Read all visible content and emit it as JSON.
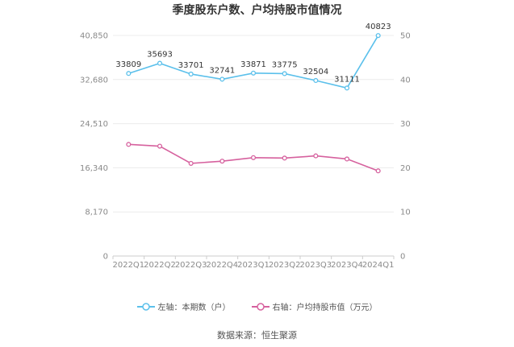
{
  "chart_data": {
    "type": "line",
    "title": "季度股东户数、户均持股市值情况",
    "categories": [
      "2022Q1",
      "2022Q2",
      "2022Q3",
      "2022Q4",
      "2023Q1",
      "2023Q2",
      "2023Q3",
      "2023Q4",
      "2024Q1"
    ],
    "series": [
      {
        "name": "左轴：本期数（户）",
        "axis": "left",
        "color": "#5bc0eb",
        "values": [
          33809,
          35693,
          33701,
          32741,
          33871,
          33775,
          32504,
          31111,
          40823
        ],
        "data_labels": [
          "33809",
          "35693",
          "33701",
          "32741",
          "33871",
          "33775",
          "32504",
          "31111",
          "40823"
        ]
      },
      {
        "name": "右轴：户均持股市值（万元）",
        "axis": "right",
        "color": "#d6619e",
        "values": [
          25.3,
          24.9,
          21.0,
          21.5,
          22.3,
          22.2,
          22.7,
          22.0,
          19.3
        ]
      }
    ],
    "y_left": {
      "ylim": [
        0,
        40850
      ],
      "ticks": [
        0,
        8170,
        16340,
        24510,
        32680,
        40850
      ],
      "tick_labels": [
        "0",
        "8,170",
        "16,340",
        "24,510",
        "32,680",
        "40,850"
      ]
    },
    "y_right": {
      "ylim": [
        0,
        50
      ],
      "ticks": [
        0,
        10,
        20,
        30,
        40,
        50
      ],
      "tick_labels": [
        "0",
        "10",
        "20",
        "30",
        "40",
        "50"
      ]
    },
    "grid": true,
    "legend_position": "bottom-center",
    "source": "数据来源：恒生聚源"
  }
}
